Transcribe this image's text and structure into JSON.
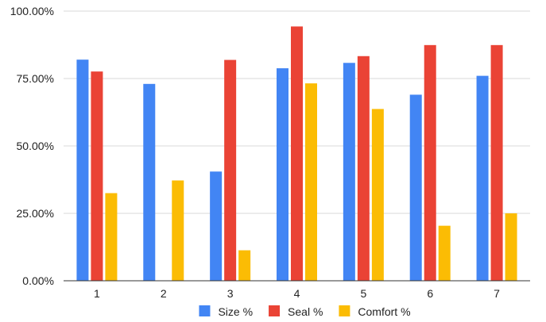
{
  "chart_data": {
    "type": "bar",
    "categories": [
      "1",
      "2",
      "3",
      "4",
      "5",
      "6",
      "7"
    ],
    "series": [
      {
        "name": "Size %",
        "color": "#4285f4",
        "values": [
          82.0,
          73.0,
          40.5,
          78.8,
          80.8,
          69.0,
          76.0
        ]
      },
      {
        "name": "Seal %",
        "color": "#ea4335",
        "values": [
          77.6,
          0,
          81.9,
          94.3,
          83.3,
          87.4,
          87.4
        ]
      },
      {
        "name": "Comfort %",
        "color": "#fbbc04",
        "values": [
          32.5,
          37.2,
          11.3,
          73.2,
          63.7,
          20.4,
          25.0
        ]
      }
    ],
    "ylim": [
      0,
      100
    ],
    "yticks": [
      {
        "value": 0,
        "label": "0.00%"
      },
      {
        "value": 25,
        "label": "25.00%"
      },
      {
        "value": 50,
        "label": "50.00%"
      },
      {
        "value": 75,
        "label": "75.00%"
      },
      {
        "value": 100,
        "label": "100.00%"
      }
    ],
    "grid": true,
    "legend": "bottom"
  }
}
